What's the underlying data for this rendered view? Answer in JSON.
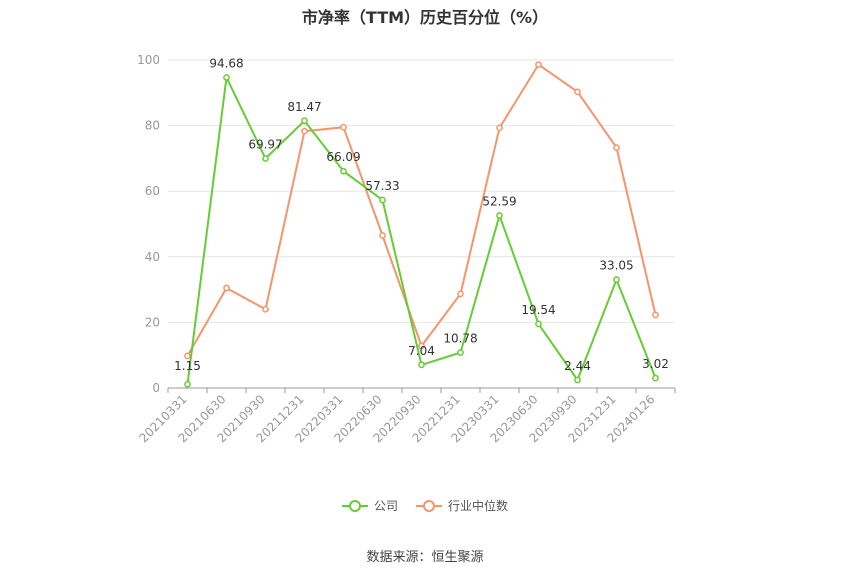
{
  "chart_data": {
    "type": "line",
    "title": "市净率（TTM）历史百分位（%）",
    "categories": [
      "20210331",
      "20210630",
      "20210930",
      "20211231",
      "20220331",
      "20220630",
      "20220930",
      "20221231",
      "20230331",
      "20230630",
      "20230930",
      "20231231",
      "20240126"
    ],
    "series": [
      {
        "name": "公司",
        "color": "#66cc33",
        "values": [
          1.15,
          94.68,
          69.97,
          81.47,
          66.09,
          57.33,
          7.04,
          10.78,
          52.59,
          19.54,
          2.44,
          33.05,
          3.02
        ],
        "labels": [
          "1.15",
          "94.68",
          "69.97",
          "81.47",
          "66.09",
          "57.33",
          "7.04",
          "10.78",
          "52.59",
          "19.54",
          "2.44",
          "33.05",
          "3.02"
        ]
      },
      {
        "name": "行业中位数",
        "color": "#f4956b",
        "values": [
          9.8,
          30.5,
          24.0,
          78.3,
          79.5,
          46.5,
          12.8,
          28.7,
          79.3,
          98.6,
          90.3,
          73.3,
          22.3
        ]
      }
    ],
    "ylim": [
      0,
      100
    ],
    "yticks": [
      "0",
      "20",
      "40",
      "60",
      "80",
      "100"
    ],
    "grid": true,
    "legend_position": "bottom"
  },
  "footer": {
    "source": "数据来源：恒生聚源"
  }
}
